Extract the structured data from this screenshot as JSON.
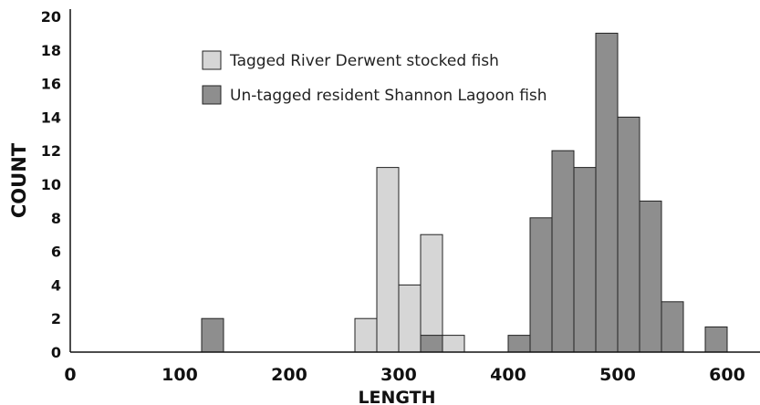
{
  "chart_data": {
    "type": "bar",
    "title": "",
    "xlabel": "LENGTH",
    "ylabel": "COUNT",
    "xlim": [
      0,
      640
    ],
    "ylim": [
      0,
      20
    ],
    "bin_width": 20,
    "x_ticks": [
      "0",
      "100",
      "200",
      "300",
      "400",
      "500",
      "600"
    ],
    "y_ticks": [
      "0",
      "2",
      "4",
      "6",
      "8",
      "10",
      "12",
      "14",
      "16",
      "18",
      "20"
    ],
    "legend_position": "top-left",
    "grid": false,
    "series": [
      {
        "name": "Tagged River Derwent stocked fish",
        "color": "#d6d6d6",
        "bins": [
          {
            "x": 270,
            "count": 2
          },
          {
            "x": 290,
            "count": 11
          },
          {
            "x": 310,
            "count": 4
          },
          {
            "x": 330,
            "count": 7
          },
          {
            "x": 350,
            "count": 1
          }
        ]
      },
      {
        "name": "Un-tagged resident Shannon Lagoon fish",
        "color": "#8e8e8e",
        "bins": [
          {
            "x": 130,
            "count": 2
          },
          {
            "x": 330,
            "count": 1
          },
          {
            "x": 410,
            "count": 1
          },
          {
            "x": 430,
            "count": 8
          },
          {
            "x": 450,
            "count": 12
          },
          {
            "x": 470,
            "count": 11
          },
          {
            "x": 490,
            "count": 19
          },
          {
            "x": 510,
            "count": 14
          },
          {
            "x": 530,
            "count": 9
          },
          {
            "x": 550,
            "count": 3
          },
          {
            "x": 590,
            "count": 1.5
          }
        ]
      }
    ]
  }
}
